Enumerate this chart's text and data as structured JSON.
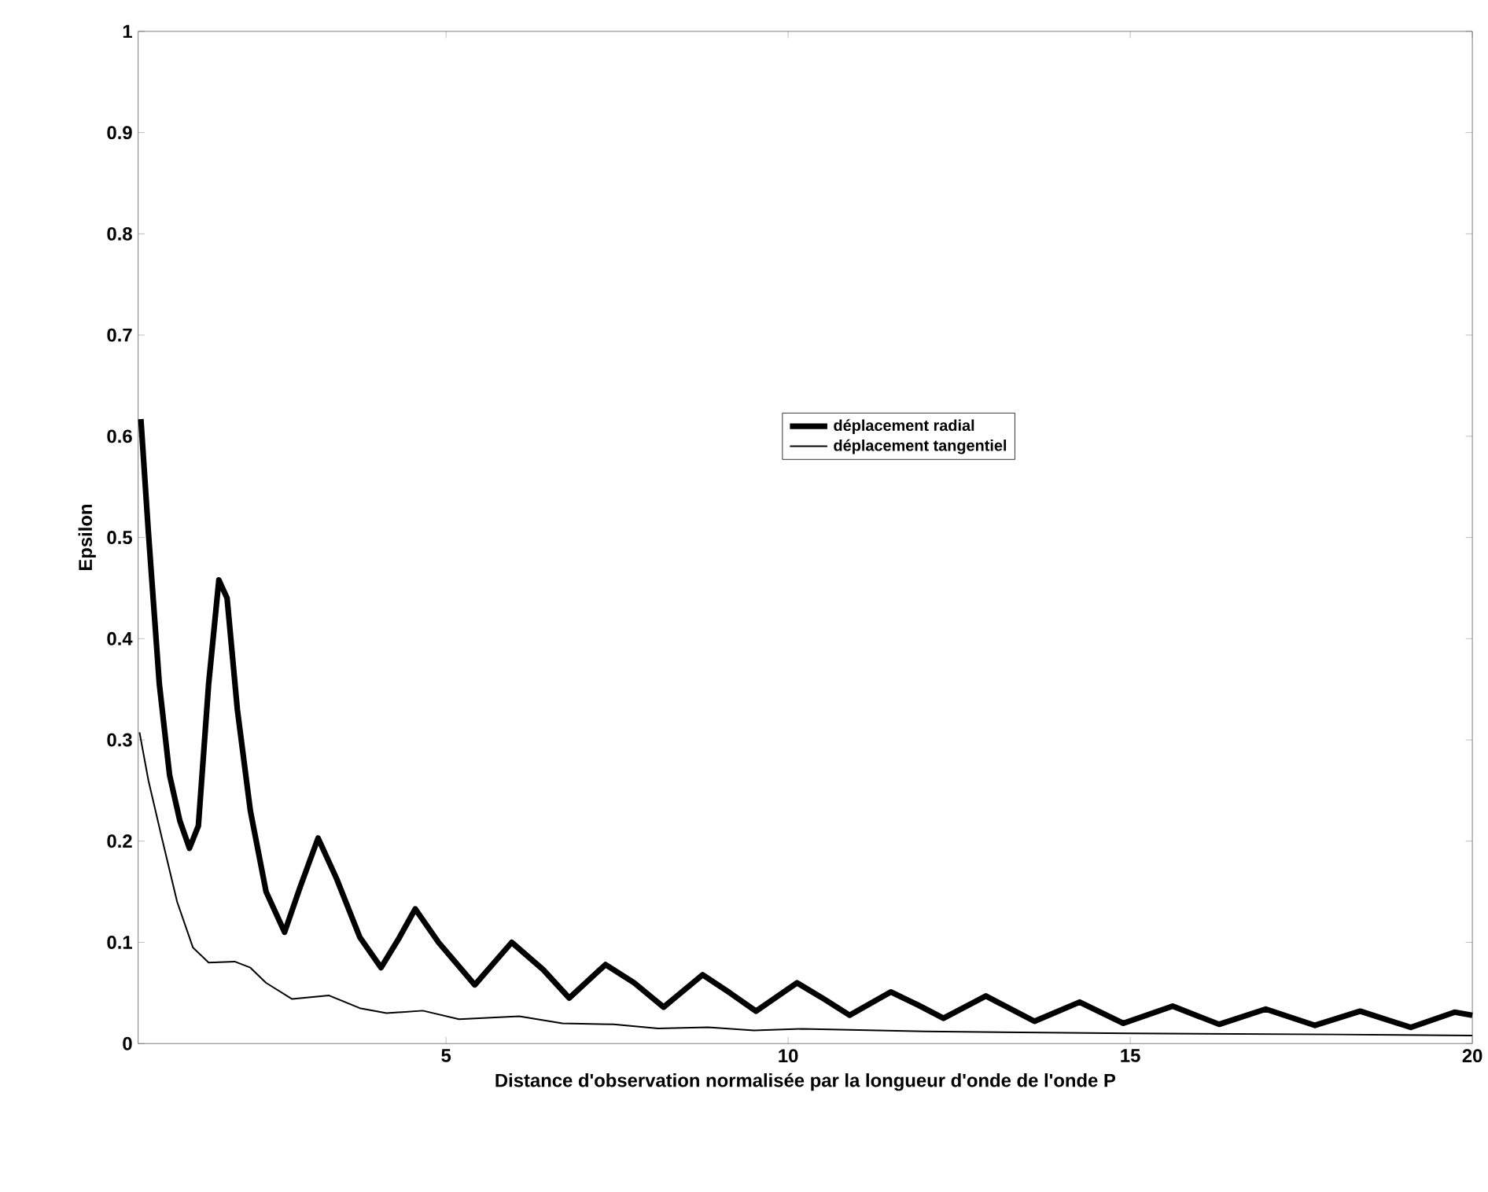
{
  "chart_data": {
    "type": "line",
    "xlabel": "Distance d'observation normalisée par la longueur d'onde de l'onde P",
    "ylabel": "Epsilon",
    "xlim": [
      0.5,
      20
    ],
    "ylim": [
      0,
      1
    ],
    "xticks": [
      5,
      10,
      15,
      20
    ],
    "yticks": [
      0,
      0.1,
      0.2,
      0.3,
      0.4,
      0.5,
      0.6,
      0.7,
      0.8,
      0.9,
      1
    ],
    "grid": false,
    "legend": "right",
    "marker": "none",
    "line_style": "solid",
    "series": [
      {
        "name": "déplacement radial",
        "color": "#000000",
        "x": [
          0.54,
          0.65,
          0.81,
          0.96,
          1.11,
          1.25,
          1.38,
          1.53,
          1.68,
          1.8,
          1.95,
          2.14,
          2.37,
          2.64,
          2.87,
          3.13,
          3.4,
          3.74,
          4.05,
          4.32,
          4.55,
          4.89,
          5.42,
          5.96,
          6.42,
          6.8,
          7.33,
          7.75,
          8.18,
          8.75,
          9.15,
          9.53,
          10.13,
          10.5,
          10.9,
          11.5,
          11.9,
          12.27,
          12.89,
          13.6,
          14.26,
          14.9,
          15.62,
          16.3,
          16.98,
          17.7,
          18.36,
          19.1,
          19.74,
          20
        ],
        "values": [
          0.617,
          0.505,
          0.355,
          0.265,
          0.22,
          0.193,
          0.215,
          0.355,
          0.458,
          0.44,
          0.33,
          0.23,
          0.15,
          0.11,
          0.155,
          0.203,
          0.163,
          0.105,
          0.075,
          0.105,
          0.133,
          0.1,
          0.058,
          0.1,
          0.073,
          0.045,
          0.078,
          0.06,
          0.036,
          0.068,
          0.05,
          0.032,
          0.06,
          0.045,
          0.028,
          0.051,
          0.038,
          0.025,
          0.047,
          0.022,
          0.041,
          0.02,
          0.037,
          0.019,
          0.034,
          0.018,
          0.032,
          0.016,
          0.031,
          0.028
        ]
      },
      {
        "name": "déplacement tangentiel",
        "color": "#000000",
        "x": [
          0.52,
          0.65,
          0.84,
          1.07,
          1.3,
          1.53,
          1.91,
          2.14,
          2.37,
          2.75,
          3.29,
          3.74,
          4.13,
          4.66,
          5.19,
          6.07,
          6.7,
          7.45,
          8.1,
          8.83,
          9.5,
          10.2,
          12,
          15,
          18,
          20
        ],
        "values": [
          0.3075,
          0.26,
          0.205,
          0.14,
          0.095,
          0.08,
          0.081,
          0.075,
          0.06,
          0.044,
          0.0475,
          0.035,
          0.03,
          0.0325,
          0.024,
          0.027,
          0.02,
          0.019,
          0.015,
          0.016,
          0.013,
          0.0145,
          0.012,
          0.01,
          0.009,
          0.008
        ]
      }
    ]
  }
}
